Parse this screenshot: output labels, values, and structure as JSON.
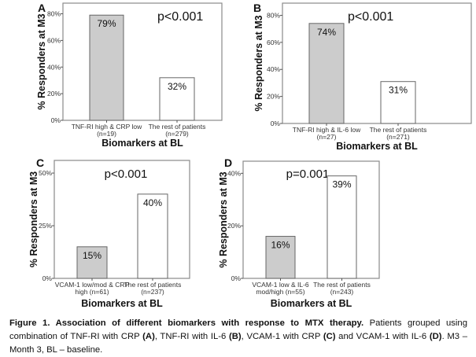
{
  "chart_data": [
    {
      "type": "bar",
      "panel_label": "A",
      "categories": [
        "TNF-RI high & CRP low",
        "The rest of patients"
      ],
      "category_n": [
        "(n=19)",
        "(n=279)"
      ],
      "values": [
        79,
        32
      ],
      "data_labels": [
        "79%",
        "32%"
      ],
      "bar_colors": [
        "#cccccc",
        "#ffffff"
      ],
      "annotation": "p<0.001",
      "xlabel": "Biomarkers at BL",
      "ylabel": "% Responders at M3",
      "yticks": [
        0,
        20,
        40,
        60,
        80
      ],
      "ytick_labels": [
        "0%",
        "20%",
        "40%",
        "60%",
        "80%"
      ],
      "ylim": [
        0,
        88
      ],
      "grid": false
    },
    {
      "type": "bar",
      "panel_label": "B",
      "categories": [
        "TNF-RI high & IL-6 low",
        "The rest of patients"
      ],
      "category_n": [
        "(n=27)",
        "(n=271)"
      ],
      "values": [
        74,
        31
      ],
      "data_labels": [
        "74%",
        "31%"
      ],
      "bar_colors": [
        "#cccccc",
        "#ffffff"
      ],
      "annotation": "p<0.001",
      "xlabel": "Biomarkers at BL",
      "ylabel": "% Responders at M3",
      "yticks": [
        0,
        20,
        40,
        60,
        80
      ],
      "ytick_labels": [
        "0%",
        "20%",
        "40%",
        "60%",
        "80%"
      ],
      "ylim": [
        0,
        89
      ],
      "grid": false
    },
    {
      "type": "bar",
      "panel_label": "C",
      "categories": [
        "VCAM-1 low/mod & CRP",
        "The rest of patients"
      ],
      "category_n": [
        "high (n=61)",
        "(n=237)"
      ],
      "values": [
        15,
        40
      ],
      "data_labels": [
        "15%",
        "40%"
      ],
      "bar_colors": [
        "#cccccc",
        "#ffffff"
      ],
      "annotation": "p<0.001",
      "xlabel": "Biomarkers at BL",
      "ylabel": "% Responders at M3",
      "yticks": [
        0,
        25,
        50
      ],
      "ytick_labels": [
        "0%",
        "25%",
        "50%"
      ],
      "ylim": [
        0,
        56
      ],
      "grid": false
    },
    {
      "type": "bar",
      "panel_label": "D",
      "categories": [
        "VCAM-1 low & IL-6",
        "The rest of patients"
      ],
      "category_n": [
        "mod/high (n=55)",
        "(n=243)"
      ],
      "values": [
        16,
        39
      ],
      "data_labels": [
        "16%",
        "39%"
      ],
      "bar_colors": [
        "#cccccc",
        "#ffffff"
      ],
      "annotation": "p=0.001",
      "xlabel": "Biomarkers at BL",
      "ylabel": "% Responders at M3",
      "yticks": [
        0,
        20,
        40
      ],
      "ytick_labels": [
        "0%",
        "20%",
        "40%"
      ],
      "ylim": [
        0,
        44.6
      ],
      "grid": false
    }
  ],
  "caption": {
    "bold": "Figure 1. Association of different biomarkers with response to MTX therapy.",
    "t1": " Patients grouped using combination of TNF-RI with CRP ",
    "a": "(A)",
    "t2": ", TNF-RI with IL-6 ",
    "b": "(B)",
    "t3": ", VCAM-1 with CRP ",
    "c": "(C)",
    "t4": " and VCAM-1 with IL-6 ",
    "d": "(D)",
    "t5": ". M3 – Month 3, BL – baseline."
  }
}
